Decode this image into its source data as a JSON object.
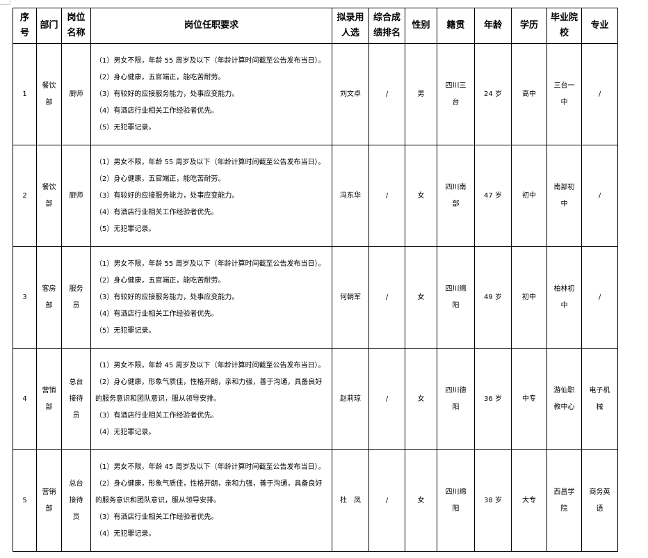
{
  "headers": [
    "序\n号",
    "部门",
    "岗位\n名称",
    "岗位任职要求",
    "拟录用\n人选",
    "综合成\n绩排名",
    "性别",
    "籍贯",
    "年龄",
    "学历",
    "毕业院\n校",
    "专业"
  ],
  "rows": [
    {
      "no": "1",
      "dept": "餐饮\n部",
      "post": "厨师",
      "req": [
        "（1）男女不限，年龄 55 周岁及以下（年龄计算时间截至公告发布当日）。",
        "（2）身心健康，五官端正，能吃苦耐劳。",
        "（3）有较好的应接服务能力，处事应变能力。",
        "（4）有酒店行业相关工作经验者优先。",
        "（5）无犯罪记录。"
      ],
      "name": "刘文卓",
      "rank": "/",
      "gender": "男",
      "origin": "四川三\n台",
      "age": "24 岁",
      "edu": "高中",
      "school": "三台一\n中",
      "major": "/"
    },
    {
      "no": "2",
      "dept": "餐饮\n部",
      "post": "厨师",
      "req": [
        "（1）男女不限，年龄 55 周岁及以下（年龄计算时间截至公告发布当日）。",
        "（2）身心健康，五官端正，能吃苦耐劳。",
        "（3）有较好的应接服务能力，处事应变能力。",
        "（4）有酒店行业相关工作经验者优先。",
        "（5）无犯罪记录。"
      ],
      "name": "冯东华",
      "rank": "/",
      "gender": "女",
      "origin": "四川南\n部",
      "age": "47 岁",
      "edu": "初中",
      "school": "南部初\n中",
      "major": "/"
    },
    {
      "no": "3",
      "dept": "客房\n部",
      "post": "服务\n员",
      "req": [
        "（1）男女不限，年龄 55 周岁及以下（年龄计算时间截至公告发布当日）。",
        "（2）身心健康，五官端正，能吃苦耐劳。",
        "（3）有较好的应接服务能力，处事应变能力。",
        "（4）有酒店行业相关工作经验者优先。",
        "（5）无犯罪记录。"
      ],
      "name": "何朝军",
      "rank": "/",
      "gender": "女",
      "origin": "四川绵\n阳",
      "age": "49 岁",
      "edu": "初中",
      "school": "柏林初\n中",
      "major": "/"
    },
    {
      "no": "4",
      "dept": "营销\n部",
      "post": "总台\n接待\n员",
      "req": [
        "（1）男女不限，年龄 45 周岁及以下（年龄计算时间截至公告发布当日）。",
        "（2）身心健康，形象气质佳，性格开朗，亲和力强，善于沟通，具备良好的服务意识和团队意识，服从领导安排。",
        "（3）有酒店行业相关工作经验者优先。",
        "（4）无犯罪记录。"
      ],
      "name": "赵莉琼",
      "rank": "/",
      "gender": "女",
      "origin": "四川德\n阳",
      "age": "36 岁",
      "edu": "中专",
      "school": "游仙职\n教中心",
      "major": "电子机\n械"
    },
    {
      "no": "5",
      "dept": "营销\n部",
      "post": "总台\n接待\n员",
      "req": [
        "（1）男女不限，年龄 45 周岁及以下（年龄计算时间截至公告发布当日）。",
        "（2）身心健康，形象气质佳，性格开朗，亲和力强，善于沟通，具备良好的服务意识和团队意识，服从领导安排。",
        "（3）有酒店行业相关工作经验者优先。",
        "（4）无犯罪记录。"
      ],
      "name": "杜　凤",
      "rank": "/",
      "gender": "女",
      "origin": "四川绵\n阳",
      "age": "38 岁",
      "edu": "大专",
      "school": "西昌学\n院",
      "major": "商务英\n语"
    }
  ]
}
